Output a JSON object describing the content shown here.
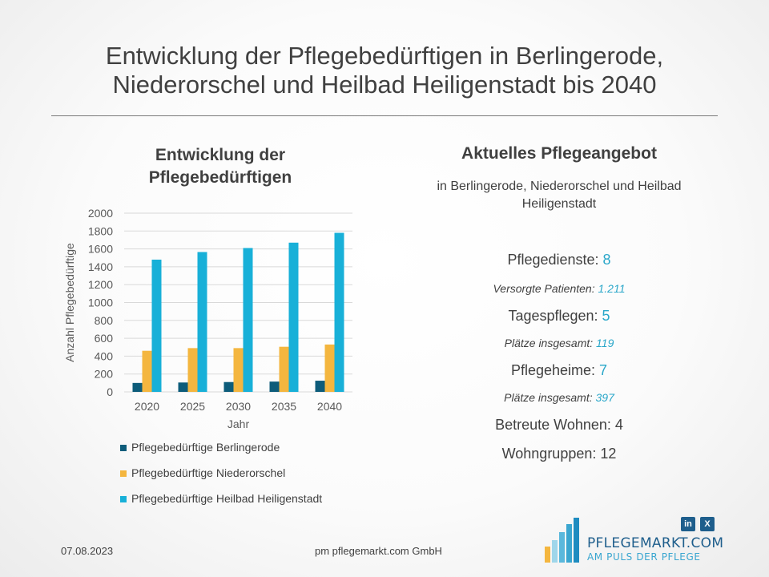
{
  "header": {
    "title_line1": "Entwicklung der Pflegebedürftigen in Berlingerode,",
    "title_line2": "Niederorschel und Heilbad Heiligenstadt bis 2040"
  },
  "chart_panel": {
    "title_line1": "Entwicklung der",
    "title_line2": "Pflegebedürftigen"
  },
  "chart_data": {
    "type": "bar",
    "categories": [
      "2020",
      "2025",
      "2030",
      "2035",
      "2040"
    ],
    "series": [
      {
        "name": "Pflegebedürftige Berlingerode",
        "color": "#0d5c7a",
        "values": [
          100,
          105,
          110,
          115,
          125
        ]
      },
      {
        "name": "Pflegebedürftige Niederorschel",
        "color": "#f4b63f",
        "values": [
          460,
          490,
          490,
          505,
          530
        ]
      },
      {
        "name": "Pflegebedürftige Heilbad Heiligenstadt",
        "color": "#18b0d8",
        "values": [
          1480,
          1565,
          1610,
          1670,
          1780
        ]
      }
    ],
    "title": "Entwicklung der Pflegebedürftigen",
    "xlabel": "Jahr",
    "ylabel": "Anzahl Pflegebedürftige",
    "ylim": [
      0,
      2000
    ],
    "yticks": [
      0,
      200,
      400,
      600,
      800,
      1000,
      1200,
      1400,
      1600,
      1800,
      2000
    ],
    "grid": true,
    "legend": "bottom"
  },
  "offer": {
    "title": "Aktuelles Pflegeangebot",
    "subtitle_line1": "in Berlingerode, Niederorschel und Heilbad",
    "subtitle_line2": "Heiligenstadt",
    "pflegedienste_label": "Pflegedienste: ",
    "pflegedienste_value": "8",
    "patienten_label": "Versorgte Patienten: ",
    "patienten_value": "1.211",
    "tagespflegen_label": "Tagespflegen: ",
    "tagespflegen_value": "5",
    "tp_plaetze_label": "Plätze insgesamt: ",
    "tp_plaetze_value": "119",
    "pflegeheime_label": "Pflegeheime: ",
    "pflegeheime_value": "7",
    "ph_plaetze_label": "Plätze insgesamt: ",
    "ph_plaetze_value": "397",
    "betreute_wohnen": "Betreute Wohnen: 4",
    "wohngruppen": "Wohngruppen: 12"
  },
  "footer": {
    "date": "07.08.2023",
    "company": "pm pflegemarkt.com GmbH"
  },
  "logo": {
    "name": "PFLEGEMARKT.COM",
    "slogan": "AM PULS DER PFLEGE",
    "linkedin_icon": "in",
    "xing_icon": "X",
    "brand_color": "#1e5e8c",
    "accent_color": "#3aa6d0"
  }
}
